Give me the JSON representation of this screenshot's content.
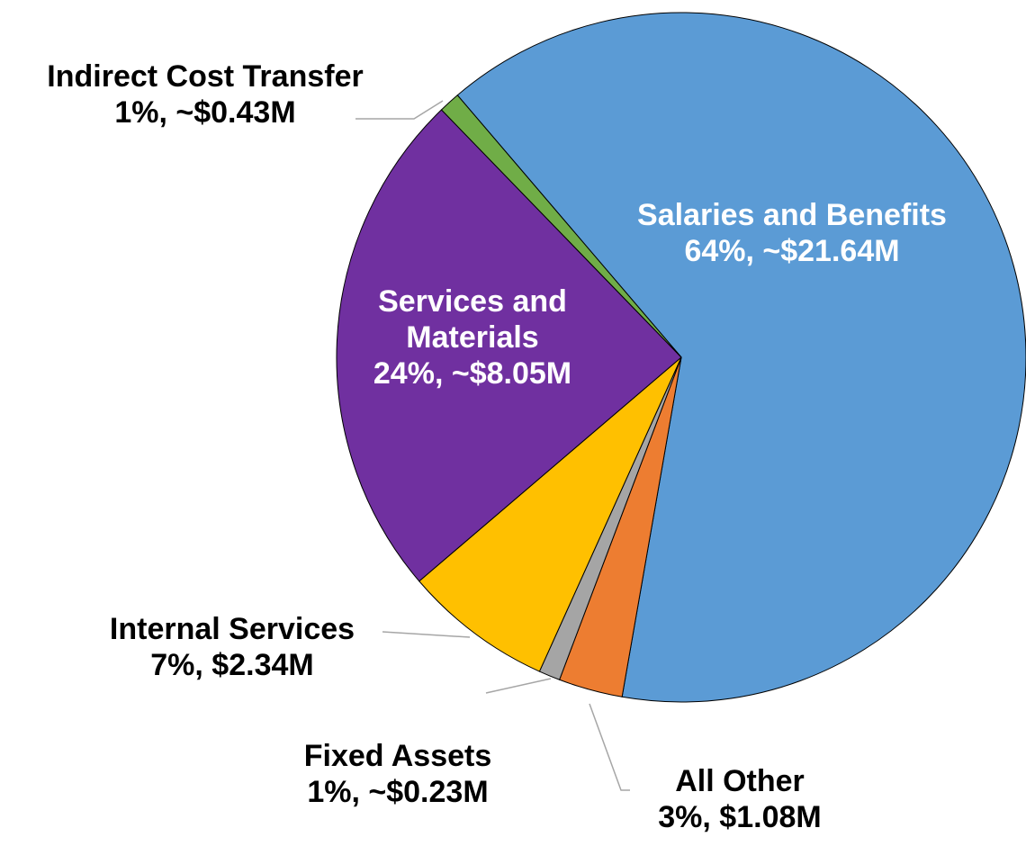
{
  "chart_data": {
    "type": "pie",
    "categories": [
      "Salaries and Benefits",
      "All Other",
      "Fixed Assets",
      "Internal Services",
      "Services and Materials",
      "Indirect Cost Transfer"
    ],
    "values": [
      64,
      3,
      1,
      7,
      24,
      1
    ],
    "value_labels": [
      "64%, ~$21.64M",
      "3%, $1.08M",
      "1%, ~$0.23M",
      "7%, $2.34M",
      "24%, ~$8.05M",
      "1%, ~$0.43M"
    ],
    "colors": [
      "#5b9bd5",
      "#ed7d31",
      "#a5a5a5",
      "#ffc000",
      "#7030a0",
      "#70ad47"
    ]
  }
}
